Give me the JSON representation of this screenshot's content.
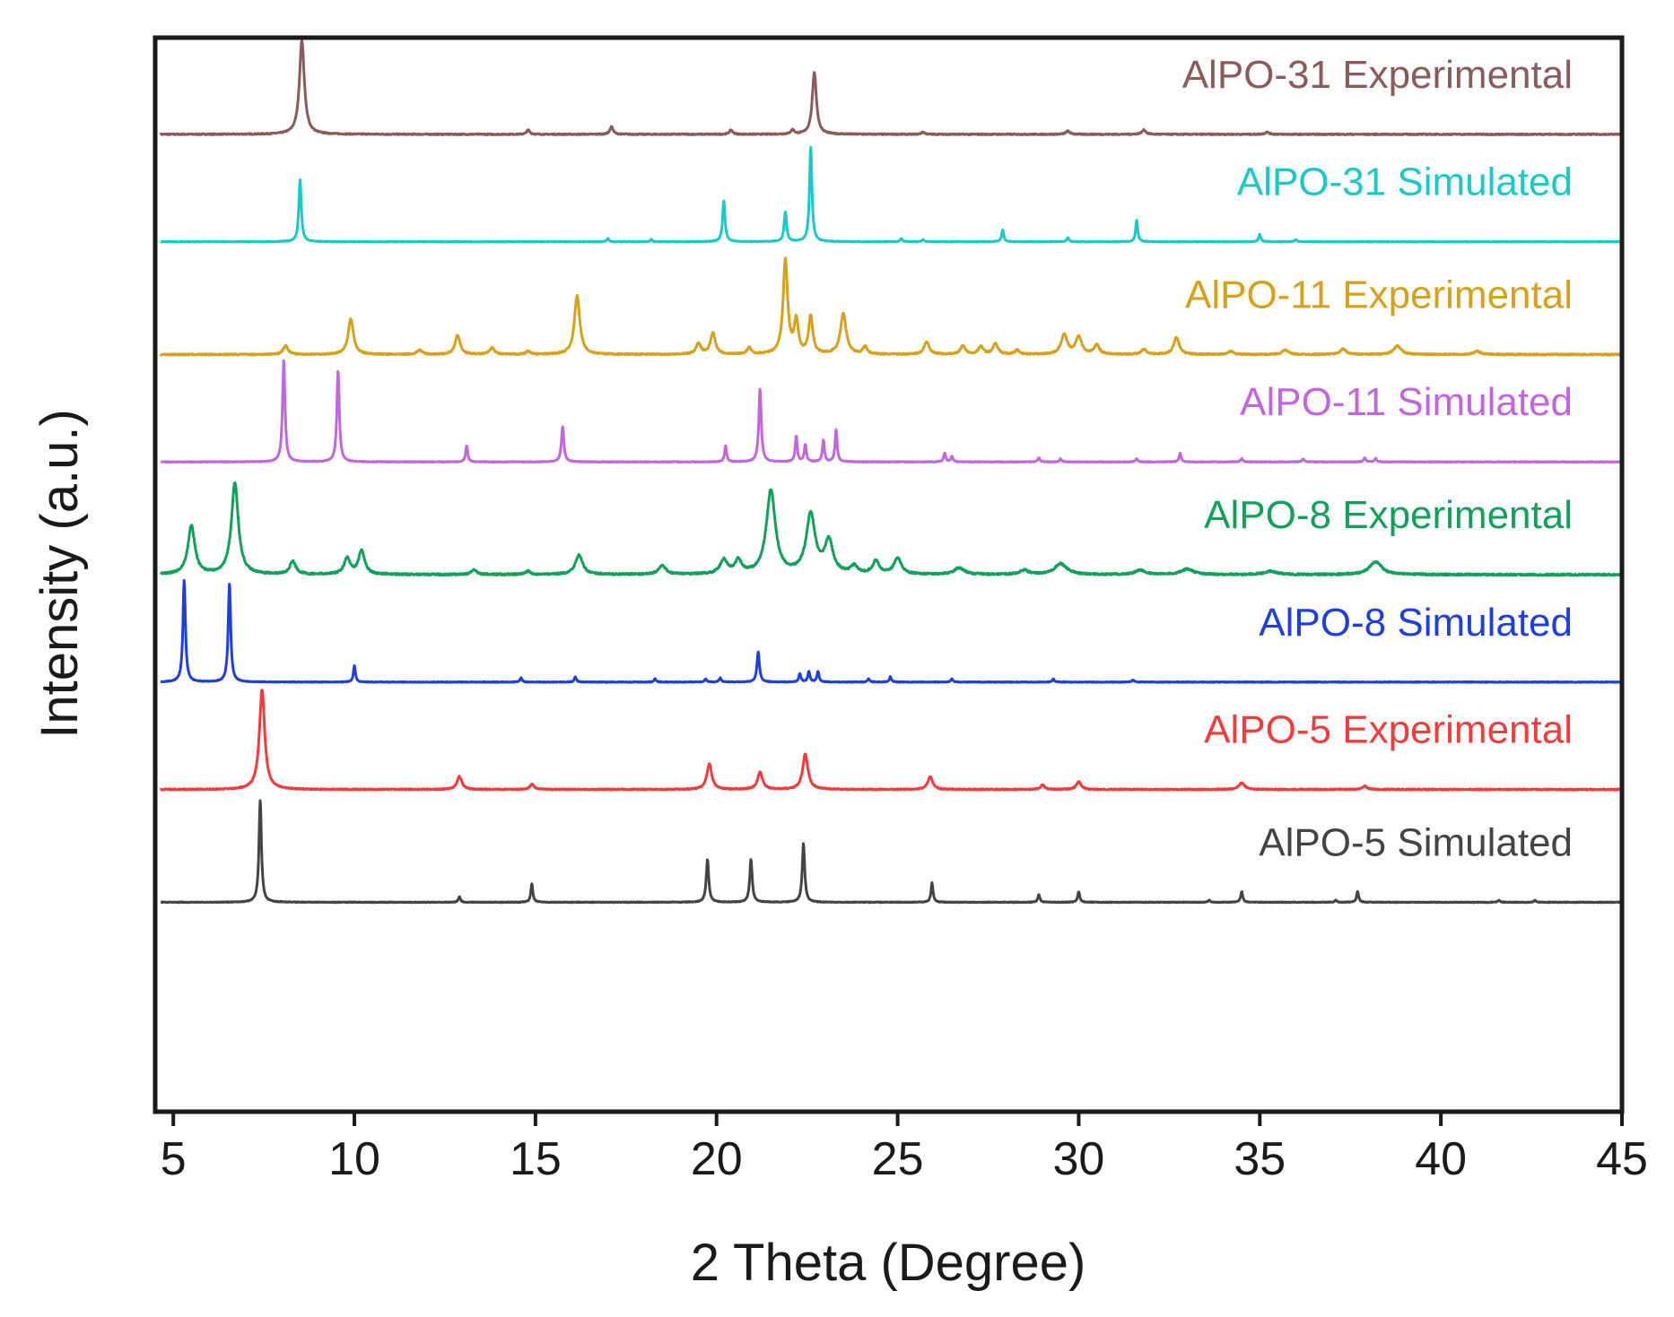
{
  "chart_data": {
    "type": "line",
    "title": "",
    "xlabel": "2 Theta (Degree)",
    "ylabel": "Intensity (a.u.)",
    "xlim": [
      4.5,
      45
    ],
    "xticks": [
      5,
      10,
      15,
      20,
      25,
      30,
      35,
      40,
      45
    ],
    "grid": false,
    "legend": "inline labels at right of each trace",
    "series": [
      {
        "name": "AlPO-31 Experimental",
        "color": "#8b5a5a",
        "baseline": 0.91,
        "noise": 0.0005,
        "peaks": [
          {
            "x": 8.55,
            "h": 0.087,
            "w": 0.12
          },
          {
            "x": 14.8,
            "h": 0.004,
            "w": 0.08
          },
          {
            "x": 17.1,
            "h": 0.007,
            "w": 0.08
          },
          {
            "x": 20.4,
            "h": 0.004,
            "w": 0.08
          },
          {
            "x": 22.1,
            "h": 0.004,
            "w": 0.08
          },
          {
            "x": 22.7,
            "h": 0.058,
            "w": 0.1
          },
          {
            "x": 25.7,
            "h": 0.002,
            "w": 0.08
          },
          {
            "x": 29.7,
            "h": 0.003,
            "w": 0.1
          },
          {
            "x": 31.8,
            "h": 0.004,
            "w": 0.1
          },
          {
            "x": 35.2,
            "h": 0.002,
            "w": 0.1
          }
        ]
      },
      {
        "name": "AlPO-31 Simulated",
        "color": "#1cc8c8",
        "baseline": 0.81,
        "noise": 0.0003,
        "peaks": [
          {
            "x": 8.5,
            "h": 0.058,
            "w": 0.06
          },
          {
            "x": 17.0,
            "h": 0.003,
            "w": 0.05
          },
          {
            "x": 18.2,
            "h": 0.002,
            "w": 0.05
          },
          {
            "x": 20.2,
            "h": 0.038,
            "w": 0.06
          },
          {
            "x": 21.9,
            "h": 0.028,
            "w": 0.06
          },
          {
            "x": 22.6,
            "h": 0.088,
            "w": 0.06
          },
          {
            "x": 25.1,
            "h": 0.003,
            "w": 0.05
          },
          {
            "x": 25.7,
            "h": 0.002,
            "w": 0.05
          },
          {
            "x": 27.9,
            "h": 0.011,
            "w": 0.05
          },
          {
            "x": 29.7,
            "h": 0.004,
            "w": 0.05
          },
          {
            "x": 31.6,
            "h": 0.02,
            "w": 0.05
          },
          {
            "x": 35.0,
            "h": 0.007,
            "w": 0.05
          },
          {
            "x": 36.0,
            "h": 0.002,
            "w": 0.05
          }
        ]
      },
      {
        "name": "AlPO-11 Experimental",
        "color": "#d6a11d",
        "baseline": 0.705,
        "noise": 0.0006,
        "peaks": [
          {
            "x": 8.1,
            "h": 0.008,
            "w": 0.12
          },
          {
            "x": 9.9,
            "h": 0.033,
            "w": 0.13
          },
          {
            "x": 11.8,
            "h": 0.004,
            "w": 0.12
          },
          {
            "x": 12.85,
            "h": 0.018,
            "w": 0.12
          },
          {
            "x": 13.8,
            "h": 0.006,
            "w": 0.12
          },
          {
            "x": 14.8,
            "h": 0.003,
            "w": 0.1
          },
          {
            "x": 16.15,
            "h": 0.055,
            "w": 0.13
          },
          {
            "x": 19.5,
            "h": 0.01,
            "w": 0.12
          },
          {
            "x": 19.9,
            "h": 0.02,
            "w": 0.12
          },
          {
            "x": 20.9,
            "h": 0.006,
            "w": 0.1
          },
          {
            "x": 21.9,
            "h": 0.088,
            "w": 0.11
          },
          {
            "x": 22.2,
            "h": 0.03,
            "w": 0.1
          },
          {
            "x": 22.6,
            "h": 0.035,
            "w": 0.1
          },
          {
            "x": 23.5,
            "h": 0.038,
            "w": 0.14
          },
          {
            "x": 24.1,
            "h": 0.007,
            "w": 0.1
          },
          {
            "x": 25.8,
            "h": 0.012,
            "w": 0.12
          },
          {
            "x": 26.8,
            "h": 0.008,
            "w": 0.12
          },
          {
            "x": 27.3,
            "h": 0.007,
            "w": 0.12
          },
          {
            "x": 27.7,
            "h": 0.01,
            "w": 0.12
          },
          {
            "x": 28.3,
            "h": 0.004,
            "w": 0.1
          },
          {
            "x": 29.6,
            "h": 0.018,
            "w": 0.15
          },
          {
            "x": 30.0,
            "h": 0.016,
            "w": 0.15
          },
          {
            "x": 30.5,
            "h": 0.009,
            "w": 0.12
          },
          {
            "x": 31.8,
            "h": 0.005,
            "w": 0.12
          },
          {
            "x": 32.7,
            "h": 0.016,
            "w": 0.13
          },
          {
            "x": 34.2,
            "h": 0.003,
            "w": 0.12
          },
          {
            "x": 35.7,
            "h": 0.004,
            "w": 0.15
          },
          {
            "x": 37.3,
            "h": 0.005,
            "w": 0.15
          },
          {
            "x": 38.8,
            "h": 0.008,
            "w": 0.18
          },
          {
            "x": 41.0,
            "h": 0.003,
            "w": 0.15
          }
        ]
      },
      {
        "name": "AlPO-11 Simulated",
        "color": "#c266dd",
        "baseline": 0.605,
        "noise": 0.0003,
        "peaks": [
          {
            "x": 8.05,
            "h": 0.095,
            "w": 0.06
          },
          {
            "x": 9.55,
            "h": 0.085,
            "w": 0.06
          },
          {
            "x": 13.1,
            "h": 0.015,
            "w": 0.05
          },
          {
            "x": 15.75,
            "h": 0.033,
            "w": 0.06
          },
          {
            "x": 20.25,
            "h": 0.015,
            "w": 0.05
          },
          {
            "x": 21.2,
            "h": 0.068,
            "w": 0.06
          },
          {
            "x": 22.2,
            "h": 0.024,
            "w": 0.05
          },
          {
            "x": 22.45,
            "h": 0.016,
            "w": 0.05
          },
          {
            "x": 22.95,
            "h": 0.02,
            "w": 0.05
          },
          {
            "x": 23.3,
            "h": 0.03,
            "w": 0.05
          },
          {
            "x": 26.3,
            "h": 0.008,
            "w": 0.05
          },
          {
            "x": 26.5,
            "h": 0.005,
            "w": 0.05
          },
          {
            "x": 28.9,
            "h": 0.004,
            "w": 0.05
          },
          {
            "x": 29.5,
            "h": 0.003,
            "w": 0.05
          },
          {
            "x": 31.6,
            "h": 0.003,
            "w": 0.05
          },
          {
            "x": 32.8,
            "h": 0.008,
            "w": 0.05
          },
          {
            "x": 34.5,
            "h": 0.003,
            "w": 0.05
          },
          {
            "x": 36.2,
            "h": 0.003,
            "w": 0.05
          },
          {
            "x": 37.9,
            "h": 0.004,
            "w": 0.05
          },
          {
            "x": 38.2,
            "h": 0.003,
            "w": 0.05
          }
        ]
      },
      {
        "name": "AlPO-8 Experimental",
        "color": "#13a05c",
        "baseline": 0.5,
        "noise": 0.0008,
        "peaks": [
          {
            "x": 5.5,
            "h": 0.045,
            "w": 0.17
          },
          {
            "x": 6.7,
            "h": 0.085,
            "w": 0.17
          },
          {
            "x": 8.3,
            "h": 0.012,
            "w": 0.15
          },
          {
            "x": 9.8,
            "h": 0.015,
            "w": 0.15
          },
          {
            "x": 10.2,
            "h": 0.022,
            "w": 0.15
          },
          {
            "x": 13.3,
            "h": 0.004,
            "w": 0.15
          },
          {
            "x": 14.8,
            "h": 0.003,
            "w": 0.12
          },
          {
            "x": 16.2,
            "h": 0.018,
            "w": 0.18
          },
          {
            "x": 18.5,
            "h": 0.008,
            "w": 0.18
          },
          {
            "x": 20.2,
            "h": 0.013,
            "w": 0.18
          },
          {
            "x": 20.6,
            "h": 0.012,
            "w": 0.16
          },
          {
            "x": 21.5,
            "h": 0.078,
            "w": 0.22
          },
          {
            "x": 22.6,
            "h": 0.055,
            "w": 0.22
          },
          {
            "x": 23.1,
            "h": 0.03,
            "w": 0.2
          },
          {
            "x": 23.8,
            "h": 0.007,
            "w": 0.16
          },
          {
            "x": 24.4,
            "h": 0.012,
            "w": 0.16
          },
          {
            "x": 25.0,
            "h": 0.015,
            "w": 0.18
          },
          {
            "x": 26.7,
            "h": 0.006,
            "w": 0.25
          },
          {
            "x": 28.5,
            "h": 0.004,
            "w": 0.2
          },
          {
            "x": 29.5,
            "h": 0.01,
            "w": 0.3
          },
          {
            "x": 31.7,
            "h": 0.004,
            "w": 0.25
          },
          {
            "x": 33.0,
            "h": 0.005,
            "w": 0.3
          },
          {
            "x": 35.3,
            "h": 0.003,
            "w": 0.3
          },
          {
            "x": 38.2,
            "h": 0.012,
            "w": 0.3
          }
        ]
      },
      {
        "name": "AlPO-8 Simulated",
        "color": "#1f3fdb",
        "baseline": 0.4,
        "noise": 0.0003,
        "peaks": [
          {
            "x": 5.3,
            "h": 0.095,
            "w": 0.06
          },
          {
            "x": 6.55,
            "h": 0.092,
            "w": 0.06
          },
          {
            "x": 10.0,
            "h": 0.015,
            "w": 0.05
          },
          {
            "x": 14.6,
            "h": 0.004,
            "w": 0.05
          },
          {
            "x": 16.1,
            "h": 0.005,
            "w": 0.05
          },
          {
            "x": 18.3,
            "h": 0.003,
            "w": 0.05
          },
          {
            "x": 19.7,
            "h": 0.003,
            "w": 0.05
          },
          {
            "x": 20.1,
            "h": 0.004,
            "w": 0.05
          },
          {
            "x": 21.15,
            "h": 0.028,
            "w": 0.06
          },
          {
            "x": 22.3,
            "h": 0.008,
            "w": 0.05
          },
          {
            "x": 22.55,
            "h": 0.01,
            "w": 0.05
          },
          {
            "x": 22.8,
            "h": 0.01,
            "w": 0.05
          },
          {
            "x": 24.2,
            "h": 0.003,
            "w": 0.05
          },
          {
            "x": 24.8,
            "h": 0.005,
            "w": 0.05
          },
          {
            "x": 26.5,
            "h": 0.003,
            "w": 0.05
          },
          {
            "x": 29.3,
            "h": 0.003,
            "w": 0.05
          },
          {
            "x": 31.5,
            "h": 0.002,
            "w": 0.05
          }
        ]
      },
      {
        "name": "AlPO-5 Experimental",
        "color": "#f23b3b",
        "baseline": 0.3,
        "noise": 0.0005,
        "peaks": [
          {
            "x": 7.45,
            "h": 0.093,
            "w": 0.13
          },
          {
            "x": 12.9,
            "h": 0.012,
            "w": 0.12
          },
          {
            "x": 14.9,
            "h": 0.005,
            "w": 0.1
          },
          {
            "x": 19.8,
            "h": 0.024,
            "w": 0.12
          },
          {
            "x": 21.2,
            "h": 0.016,
            "w": 0.12
          },
          {
            "x": 22.45,
            "h": 0.033,
            "w": 0.13
          },
          {
            "x": 25.9,
            "h": 0.012,
            "w": 0.12
          },
          {
            "x": 29.0,
            "h": 0.004,
            "w": 0.1
          },
          {
            "x": 30.0,
            "h": 0.007,
            "w": 0.12
          },
          {
            "x": 34.5,
            "h": 0.006,
            "w": 0.14
          },
          {
            "x": 37.9,
            "h": 0.003,
            "w": 0.12
          }
        ]
      },
      {
        "name": "AlPO-5 Simulated",
        "color": "#444444",
        "baseline": 0.195,
        "noise": 0.0003,
        "peaks": [
          {
            "x": 7.4,
            "h": 0.095,
            "w": 0.06
          },
          {
            "x": 12.9,
            "h": 0.005,
            "w": 0.05
          },
          {
            "x": 14.9,
            "h": 0.017,
            "w": 0.05
          },
          {
            "x": 19.75,
            "h": 0.04,
            "w": 0.06
          },
          {
            "x": 20.95,
            "h": 0.04,
            "w": 0.06
          },
          {
            "x": 22.4,
            "h": 0.055,
            "w": 0.06
          },
          {
            "x": 25.95,
            "h": 0.018,
            "w": 0.05
          },
          {
            "x": 28.9,
            "h": 0.007,
            "w": 0.05
          },
          {
            "x": 30.0,
            "h": 0.01,
            "w": 0.05
          },
          {
            "x": 33.6,
            "h": 0.002,
            "w": 0.05
          },
          {
            "x": 34.5,
            "h": 0.01,
            "w": 0.05
          },
          {
            "x": 37.1,
            "h": 0.002,
            "w": 0.05
          },
          {
            "x": 37.7,
            "h": 0.01,
            "w": 0.05
          },
          {
            "x": 41.6,
            "h": 0.002,
            "w": 0.05
          },
          {
            "x": 42.6,
            "h": 0.002,
            "w": 0.05
          }
        ]
      }
    ]
  }
}
